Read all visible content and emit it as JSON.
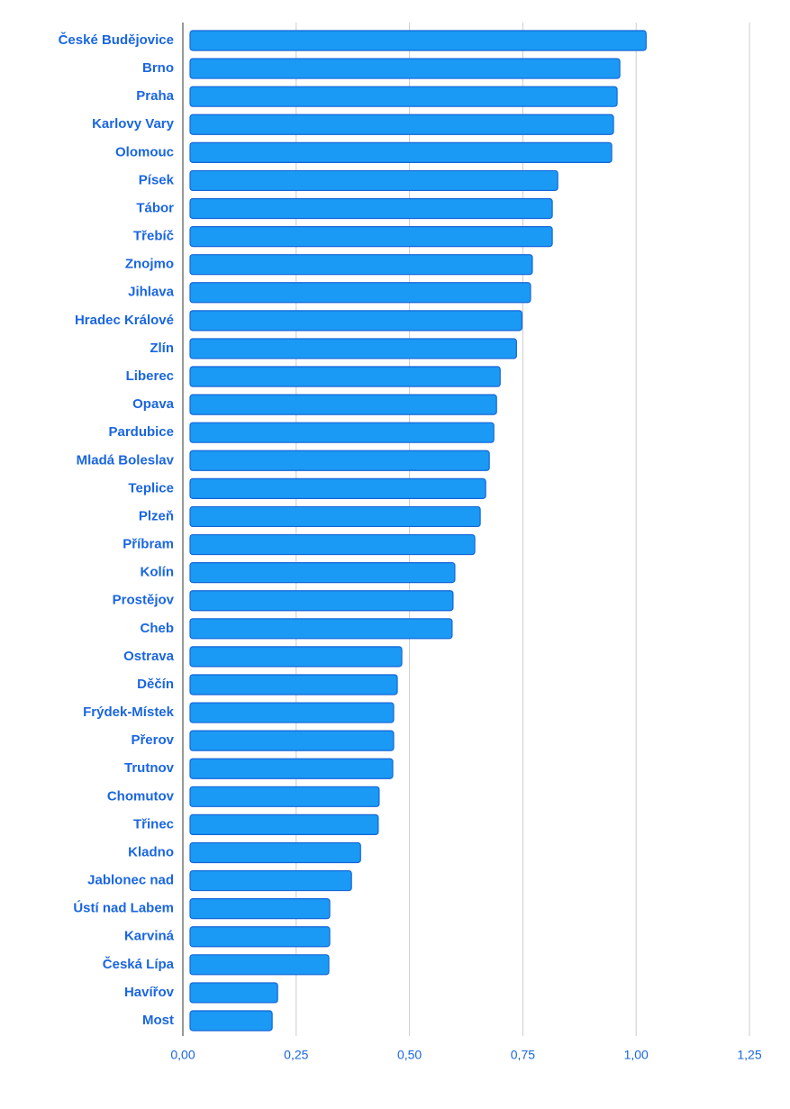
{
  "chart_data": {
    "type": "hbar",
    "categories": [
      "České Budějovice",
      "Brno",
      "Praha",
      "Karlovy Vary",
      "Olomouc",
      "Písek",
      "Tábor",
      "Třebíč",
      "Znojmo",
      "Jihlava",
      "Hradec Králové",
      "Zlín",
      "Liberec",
      "Opava",
      "Pardubice",
      "Mladá Boleslav",
      "Teplice",
      "Plzeň",
      "Příbram",
      "Kolín",
      "Prostějov",
      "Cheb",
      "Ostrava",
      "Děčín",
      "Frýdek-Místek",
      "Přerov",
      "Trutnov",
      "Chomutov",
      "Třinec",
      "Kladno",
      "Jablonec nad",
      "Ústí nad Labem",
      "Karviná",
      "Česká Lípa",
      "Havířov",
      "Most"
    ],
    "values": [
      1.022,
      0.964,
      0.958,
      0.95,
      0.946,
      0.827,
      0.815,
      0.815,
      0.771,
      0.767,
      0.748,
      0.736,
      0.7,
      0.692,
      0.686,
      0.676,
      0.668,
      0.656,
      0.644,
      0.6,
      0.596,
      0.594,
      0.483,
      0.473,
      0.465,
      0.465,
      0.463,
      0.433,
      0.431,
      0.392,
      0.372,
      0.324,
      0.324,
      0.322,
      0.209,
      0.197
    ],
    "color": "#1a9af5",
    "xlim": [
      0,
      1.25
    ],
    "xticks": [
      {
        "value": 0,
        "label": "0,00"
      },
      {
        "value": 0.25,
        "label": "0,25"
      },
      {
        "value": 0.5,
        "label": "0,50"
      },
      {
        "value": 0.75,
        "label": "0,75"
      },
      {
        "value": 1,
        "label": "1,00"
      },
      {
        "value": 1.25,
        "label": "1,25"
      }
    ],
    "grid": true
  }
}
